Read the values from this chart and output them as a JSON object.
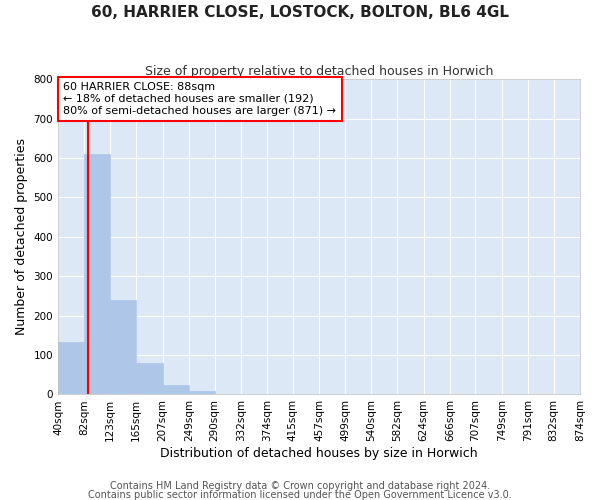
{
  "title": "60, HARRIER CLOSE, LOSTOCK, BOLTON, BL6 4GL",
  "subtitle": "Size of property relative to detached houses in Horwich",
  "xlabel": "Distribution of detached houses by size in Horwich",
  "ylabel": "Number of detached properties",
  "bin_edges": [
    40,
    82,
    123,
    165,
    207,
    249,
    290,
    332,
    374,
    415,
    457,
    499,
    540,
    582,
    624,
    666,
    707,
    749,
    791,
    832,
    874
  ],
  "bin_labels": [
    "40sqm",
    "82sqm",
    "123sqm",
    "165sqm",
    "207sqm",
    "249sqm",
    "290sqm",
    "332sqm",
    "374sqm",
    "415sqm",
    "457sqm",
    "499sqm",
    "540sqm",
    "582sqm",
    "624sqm",
    "666sqm",
    "707sqm",
    "749sqm",
    "791sqm",
    "832sqm",
    "874sqm"
  ],
  "bar_heights": [
    133,
    610,
    240,
    80,
    25,
    10,
    0,
    0,
    0,
    0,
    0,
    0,
    0,
    0,
    0,
    0,
    0,
    0,
    0,
    0
  ],
  "bar_color": "#aec6e8",
  "bar_edgecolor": "#aec6e8",
  "bar_linewidth": 0.5,
  "property_line_x": 88,
  "property_line_color": "red",
  "ylim": [
    0,
    800
  ],
  "yticks": [
    0,
    100,
    200,
    300,
    400,
    500,
    600,
    700,
    800
  ],
  "annotation_box_text": "60 HARRIER CLOSE: 88sqm\n← 18% of detached houses are smaller (192)\n80% of semi-detached houses are larger (871) →",
  "footer_line1": "Contains HM Land Registry data © Crown copyright and database right 2024.",
  "footer_line2": "Contains public sector information licensed under the Open Government Licence v3.0.",
  "plot_bg_color": "#dce8f5",
  "fig_bg_color": "#ffffff",
  "grid_color": "#ffffff",
  "title_fontsize": 11,
  "subtitle_fontsize": 9,
  "axis_label_fontsize": 9,
  "tick_fontsize": 7.5,
  "annotation_fontsize": 8,
  "footer_fontsize": 7
}
